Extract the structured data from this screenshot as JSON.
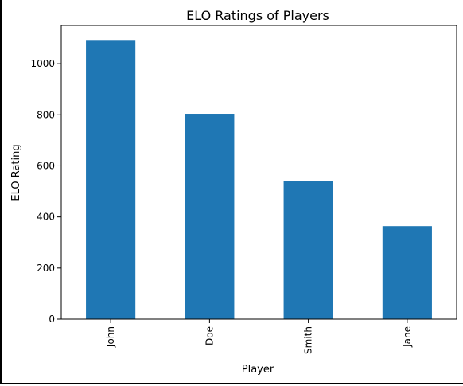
{
  "chart_data": {
    "type": "bar",
    "title": "ELO Ratings of Players",
    "xlabel": "Player",
    "ylabel": "ELO Rating",
    "categories": [
      "John",
      "Doe",
      "Smith",
      "Jane"
    ],
    "values": [
      1093,
      804,
      540,
      364
    ],
    "ylim": [
      0,
      1150
    ],
    "yticks": [
      0,
      200,
      400,
      600,
      800,
      1000
    ],
    "grid": false,
    "legend": "none",
    "bar_color": "#1f77b4"
  }
}
